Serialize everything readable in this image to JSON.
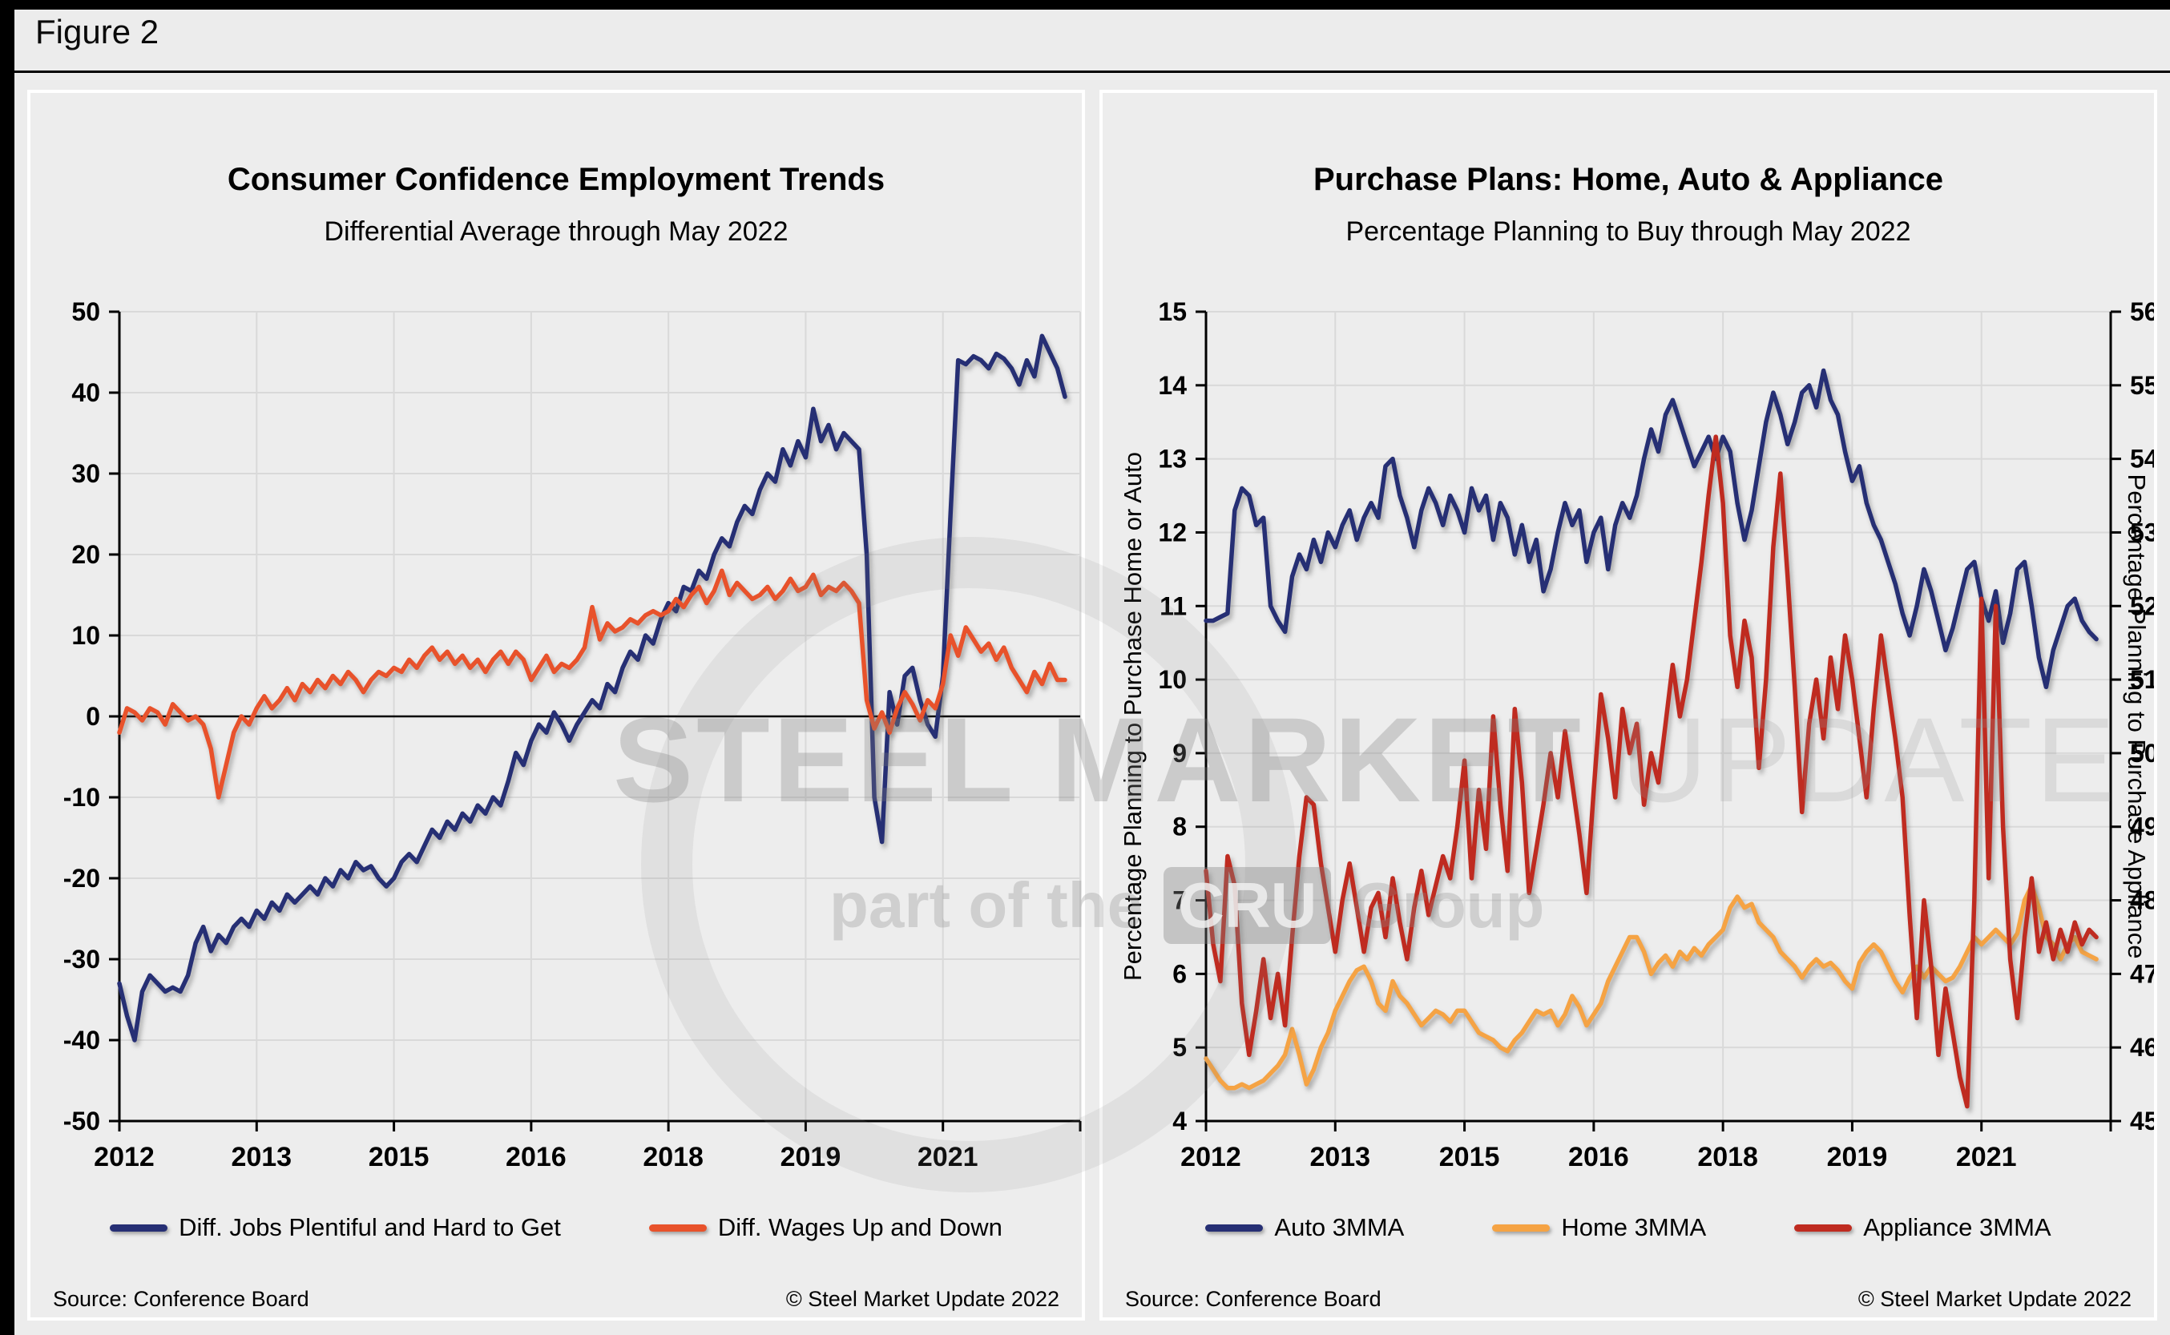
{
  "figure_label": "Figure 2",
  "watermark": {
    "line1_bold": "STEEL MARKET",
    "line1_light": "UPDATE",
    "line2_prefix": "part of the",
    "line2_box": "CRU",
    "line2_suffix": "Group"
  },
  "panels": [
    {
      "source": "Source: Conference Board",
      "copyright": "© Steel Market Update 2022"
    },
    {
      "source": "Source: Conference Board",
      "copyright": "© Steel Market Update 2022"
    }
  ],
  "chart_data": [
    {
      "type": "line",
      "title": "Consumer Confidence Employment Trends",
      "subtitle": "Differential Average through May 2022",
      "frequency": "monthly",
      "x_range": "2012-01 to 2022-05",
      "x_tick_labels": [
        "2012",
        "2013",
        "2015",
        "2016",
        "2018",
        "2019",
        "2021"
      ],
      "x_tick_interval_months": 18,
      "ylim": [
        -50,
        50
      ],
      "ytick_step": 10,
      "zero_line": true,
      "grid": true,
      "legend_position": "bottom",
      "series": [
        {
          "name": "Diff. Jobs Plentiful and Hard to Get",
          "color": "#262f74",
          "axis": "left",
          "values": [
            -33,
            -37,
            -40,
            -34,
            -32,
            -33,
            -34,
            -33.5,
            -34,
            -32,
            -28,
            -26,
            -29,
            -27,
            -28,
            -26,
            -25,
            -26,
            -24,
            -25,
            -23,
            -24,
            -22,
            -23,
            -22,
            -21,
            -22,
            -20,
            -21,
            -19,
            -20,
            -18,
            -19,
            -18.5,
            -20,
            -21,
            -20,
            -18,
            -17,
            -18,
            -16,
            -14,
            -15,
            -13,
            -14,
            -12,
            -13,
            -11,
            -12,
            -10,
            -11,
            -8,
            -4.5,
            -6,
            -3,
            -1,
            -2,
            0.5,
            -1,
            -3,
            -1,
            0.5,
            2,
            1,
            4,
            3,
            6,
            8,
            7,
            10,
            9,
            12,
            14,
            13,
            16,
            15.5,
            18,
            17,
            20,
            22,
            21,
            24,
            26,
            25,
            28,
            30,
            29,
            33,
            31,
            34,
            32,
            38,
            34,
            36,
            33,
            35,
            34,
            33,
            20,
            -10,
            -15.5,
            3,
            -1,
            5,
            6,
            2,
            -1,
            -2.5,
            5,
            25,
            44,
            43.5,
            44.5,
            44,
            43,
            44.8,
            44.2,
            43,
            41,
            44,
            42,
            47,
            45,
            43,
            39.5
          ]
        },
        {
          "name": "Diff. Wages Up and Down",
          "color": "#e8522b",
          "axis": "left",
          "values": [
            -2,
            1,
            0.5,
            -0.5,
            1,
            0.5,
            -1,
            1.5,
            0.5,
            -0.5,
            0,
            -1,
            -4,
            -10,
            -6,
            -2,
            0,
            -1,
            1,
            2.5,
            1,
            2,
            3.5,
            2,
            4,
            3,
            4.5,
            3.5,
            5,
            4,
            5.5,
            4.5,
            3,
            4.5,
            5.5,
            5,
            6,
            5.5,
            7,
            6,
            7.5,
            8.5,
            7,
            8,
            6.5,
            7.5,
            6,
            7,
            5.5,
            7,
            8,
            6.5,
            8,
            7,
            4.5,
            6,
            7.5,
            5.5,
            6.5,
            6,
            7,
            8.5,
            13.5,
            9.5,
            11.5,
            10.5,
            11,
            12,
            11.5,
            12.5,
            13,
            12.5,
            13,
            14.5,
            13.5,
            15,
            16,
            14,
            15.5,
            18,
            15,
            16.5,
            15.5,
            14.5,
            15,
            16,
            14.5,
            15.5,
            17,
            15.5,
            16,
            17.5,
            15,
            16,
            15.5,
            16.5,
            15.5,
            14,
            2,
            -1.5,
            0.5,
            -2,
            1,
            3,
            1.5,
            -0.5,
            2,
            1,
            4,
            10,
            7.5,
            11,
            9.5,
            8,
            9,
            7,
            8.5,
            6,
            4.5,
            3,
            5.5,
            4,
            6.5,
            4.5,
            4.5
          ]
        }
      ]
    },
    {
      "type": "line",
      "title": "Purchase Plans: Home, Auto & Appliance",
      "subtitle": "Percentage Planning to Buy through May 2022",
      "frequency": "monthly",
      "x_range": "2012-01 to 2022-05",
      "x_tick_labels": [
        "2012",
        "2013",
        "2015",
        "2016",
        "2018",
        "2019",
        "2021"
      ],
      "x_tick_interval_months": 18,
      "ylim_left": [
        4,
        15
      ],
      "ylim_right": [
        45,
        56
      ],
      "ytick_step": 1,
      "ylabel_left": "Percentage Planning to Purchase Home or Auto",
      "ylabel_right": "Percentage Planning to Purchase Appliance",
      "zero_line": false,
      "grid": true,
      "legend_position": "bottom",
      "series": [
        {
          "name": "Auto 3MMA",
          "color": "#262f74",
          "axis": "left",
          "values": [
            10.8,
            10.8,
            10.85,
            10.9,
            12.3,
            12.6,
            12.5,
            12.1,
            12.2,
            11.0,
            10.8,
            10.65,
            11.4,
            11.7,
            11.5,
            11.9,
            11.6,
            12.0,
            11.8,
            12.1,
            12.3,
            11.9,
            12.2,
            12.4,
            12.2,
            12.9,
            13.0,
            12.5,
            12.2,
            11.8,
            12.3,
            12.6,
            12.4,
            12.1,
            12.5,
            12.3,
            12.0,
            12.6,
            12.3,
            12.5,
            11.9,
            12.4,
            12.2,
            11.7,
            12.1,
            11.6,
            11.9,
            11.2,
            11.5,
            12.0,
            12.4,
            12.1,
            12.3,
            11.6,
            12.0,
            12.2,
            11.5,
            12.1,
            12.4,
            12.2,
            12.5,
            13.0,
            13.4,
            13.1,
            13.6,
            13.8,
            13.5,
            13.2,
            12.9,
            13.1,
            13.3,
            13.0,
            13.3,
            13.1,
            12.4,
            11.9,
            12.3,
            12.9,
            13.5,
            13.9,
            13.6,
            13.2,
            13.5,
            13.9,
            14.0,
            13.7,
            14.2,
            13.8,
            13.6,
            13.1,
            12.7,
            12.9,
            12.4,
            12.1,
            11.9,
            11.6,
            11.3,
            10.9,
            10.6,
            11.0,
            11.5,
            11.2,
            10.8,
            10.4,
            10.7,
            11.1,
            11.5,
            11.6,
            11.1,
            10.8,
            11.2,
            10.5,
            10.9,
            11.5,
            11.6,
            11.0,
            10.3,
            9.9,
            10.4,
            10.7,
            11.0,
            11.1,
            10.8,
            10.65,
            10.55
          ]
        },
        {
          "name": "Home 3MMA",
          "color": "#f5a344",
          "axis": "left",
          "values": [
            4.85,
            4.7,
            4.55,
            4.45,
            4.45,
            4.5,
            4.45,
            4.5,
            4.55,
            4.65,
            4.75,
            4.9,
            5.25,
            4.9,
            4.5,
            4.7,
            5.0,
            5.2,
            5.5,
            5.7,
            5.9,
            6.05,
            6.1,
            5.9,
            5.6,
            5.5,
            5.9,
            5.7,
            5.6,
            5.45,
            5.3,
            5.4,
            5.5,
            5.45,
            5.35,
            5.5,
            5.5,
            5.35,
            5.2,
            5.15,
            5.1,
            5.0,
            4.95,
            5.1,
            5.2,
            5.35,
            5.5,
            5.45,
            5.5,
            5.3,
            5.45,
            5.7,
            5.55,
            5.3,
            5.45,
            5.6,
            5.9,
            6.1,
            6.3,
            6.5,
            6.5,
            6.3,
            6.0,
            6.15,
            6.25,
            6.1,
            6.3,
            6.2,
            6.35,
            6.25,
            6.4,
            6.5,
            6.6,
            6.9,
            7.05,
            6.9,
            6.95,
            6.7,
            6.6,
            6.5,
            6.3,
            6.2,
            6.1,
            5.95,
            6.1,
            6.2,
            6.1,
            6.15,
            6.05,
            5.9,
            5.8,
            6.15,
            6.3,
            6.4,
            6.3,
            6.1,
            5.9,
            5.75,
            5.95,
            6.1,
            5.95,
            6.1,
            6.0,
            5.9,
            5.95,
            6.1,
            6.3,
            6.5,
            6.4,
            6.5,
            6.6,
            6.5,
            6.4,
            6.55,
            7.0,
            7.2,
            6.9,
            6.5,
            6.4,
            6.2,
            6.4,
            6.5,
            6.3,
            6.25,
            6.2
          ]
        },
        {
          "name": "Appliance 3MMA",
          "color": "#bf2b20",
          "axis": "right",
          "values": [
            48.4,
            47.4,
            46.9,
            48.6,
            48.2,
            46.6,
            45.9,
            46.5,
            47.2,
            46.4,
            47.0,
            46.3,
            47.5,
            48.6,
            49.4,
            49.3,
            48.5,
            47.9,
            47.3,
            48.0,
            48.5,
            47.9,
            47.3,
            47.9,
            48.1,
            47.5,
            48.3,
            47.7,
            47.2,
            47.9,
            48.4,
            47.8,
            48.2,
            48.6,
            48.3,
            49.0,
            49.9,
            48.3,
            49.5,
            48.7,
            50.5,
            49.3,
            48.4,
            50.6,
            49.6,
            48.1,
            48.7,
            49.3,
            50.0,
            49.4,
            50.3,
            49.6,
            48.9,
            48.1,
            49.5,
            50.8,
            50.2,
            49.4,
            50.6,
            50.0,
            50.4,
            49.3,
            50.0,
            49.6,
            50.4,
            51.2,
            50.5,
            51.0,
            51.8,
            52.6,
            53.5,
            54.3,
            53.4,
            51.6,
            50.9,
            51.8,
            51.3,
            49.8,
            51.0,
            52.8,
            53.8,
            52.4,
            50.9,
            49.2,
            50.4,
            51.0,
            50.2,
            51.3,
            50.6,
            51.6,
            51.0,
            50.2,
            49.4,
            50.6,
            51.6,
            50.9,
            50.2,
            49.4,
            47.8,
            46.4,
            48.0,
            47.1,
            45.9,
            46.8,
            46.2,
            45.6,
            45.2,
            48.0,
            52.1,
            48.3,
            52.0,
            49.0,
            47.2,
            46.4,
            47.5,
            48.3,
            47.3,
            47.7,
            47.2,
            47.6,
            47.3,
            47.7,
            47.4,
            47.6,
            47.5
          ]
        }
      ]
    }
  ]
}
